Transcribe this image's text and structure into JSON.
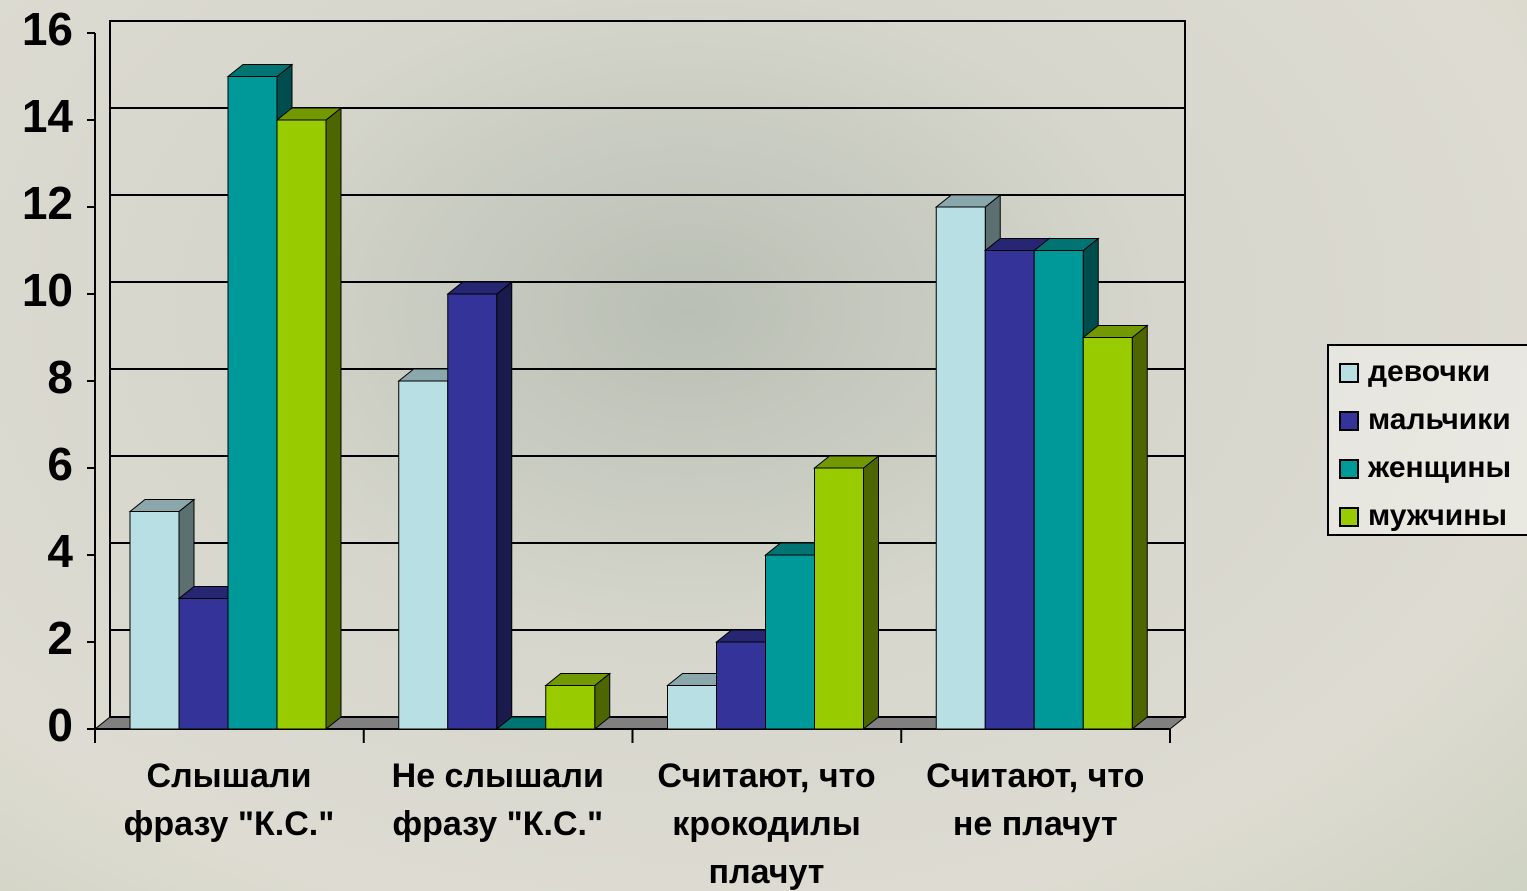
{
  "chart_data": {
    "type": "bar3d",
    "categories": [
      "Слышали\nфразу \"К.С.\"",
      "Не слышали\nфразу \"К.С.\"",
      "Считают, что\nкрокодилы\nплачут",
      "Считают, что\nне плачут"
    ],
    "series": [
      {
        "name": "девочки",
        "color": "#b8e0e4",
        "values": [
          5,
          8,
          1,
          12
        ]
      },
      {
        "name": "мальчики",
        "color": "#333399",
        "values": [
          3,
          10,
          2,
          11
        ]
      },
      {
        "name": "женщины",
        "color": "#009999",
        "values": [
          15,
          0,
          4,
          11
        ]
      },
      {
        "name": "мужчины",
        "color": "#99cc00",
        "values": [
          14,
          1,
          6,
          9
        ]
      }
    ],
    "ylim": [
      0,
      16
    ],
    "yticks": [
      0,
      2,
      4,
      6,
      8,
      10,
      12,
      14,
      16
    ],
    "grid": true,
    "legend": "right"
  }
}
